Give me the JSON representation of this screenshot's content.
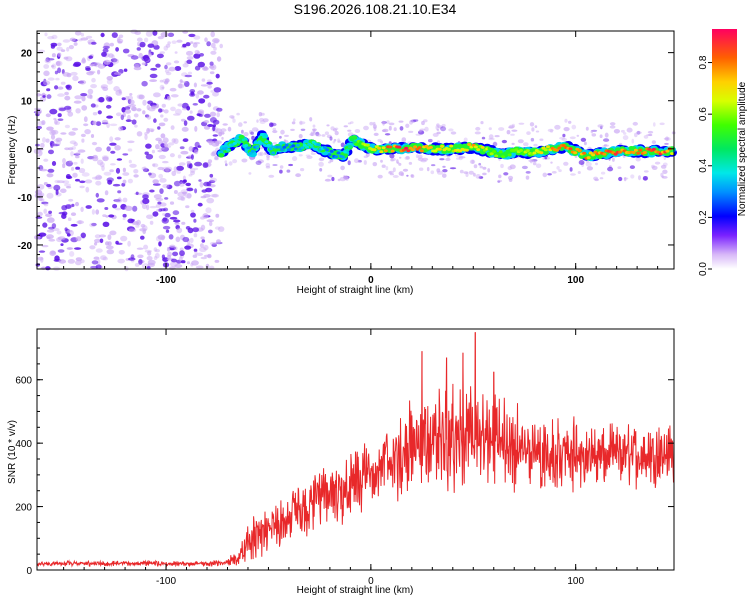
{
  "title": "S196.2026.108.21.10.E34",
  "colors": {
    "line": "#e8282a",
    "axis": "#000000",
    "scatter_low": "#c9a6f4",
    "scatter_high": "#5a10e6"
  },
  "chart_data": [
    {
      "type": "heatmap",
      "xlabel": "Height of straight line (km)",
      "ylabel": "Frequency (Hz)",
      "xlim": [
        -163,
        148
      ],
      "ylim": [
        -25,
        24.5
      ],
      "xticks": [
        -100,
        0,
        100
      ],
      "xtick_labels": [
        "-100",
        "0",
        "100"
      ],
      "yticks": [
        -20,
        -10,
        0,
        10,
        20
      ],
      "ytick_labels": [
        "-20",
        "-10",
        "0",
        "10",
        "20"
      ],
      "colorbar": {
        "label": "Normalized spectral amplitude",
        "range": [
          0,
          0.93
        ],
        "ticks": [
          0.0,
          0.2,
          0.4,
          0.6,
          0.8
        ],
        "tick_labels": [
          "0.0",
          "0.2",
          "0.4",
          "0.6",
          "0.8"
        ],
        "colormap": "rainbow"
      },
      "noise_region_x": [
        -163,
        -73
      ],
      "signal_track": {
        "x": [
          -73,
          -68,
          -63,
          -58,
          -53,
          -48,
          -43,
          -38,
          -33,
          -28,
          -23,
          -18,
          -13,
          -9,
          -5,
          0,
          10,
          20,
          30,
          40,
          50,
          60,
          65,
          70,
          80,
          90,
          95,
          100,
          105,
          110,
          120,
          130,
          140,
          148
        ],
        "y": [
          -0.8,
          0.8,
          2.2,
          -1.0,
          2.6,
          -0.5,
          0.5,
          0.2,
          0.6,
          1.0,
          -0.2,
          -1.2,
          -1.5,
          2.0,
          1.0,
          0.0,
          0.0,
          0.2,
          0.0,
          0.0,
          0.4,
          -0.8,
          -1.3,
          -0.5,
          -0.8,
          0.2,
          0.5,
          -0.5,
          -1.5,
          -1.2,
          -0.6,
          -0.4,
          -0.6,
          -0.5
        ],
        "amplitude": [
          0.35,
          0.4,
          0.45,
          0.3,
          0.4,
          0.35,
          0.3,
          0.3,
          0.35,
          0.4,
          0.35,
          0.3,
          0.35,
          0.5,
          0.6,
          0.7,
          0.85,
          0.9,
          0.75,
          0.7,
          0.75,
          0.6,
          0.55,
          0.6,
          0.65,
          0.8,
          0.9,
          0.75,
          0.85,
          0.8,
          0.85,
          0.8,
          0.9,
          0.75
        ]
      }
    },
    {
      "type": "line",
      "xlabel": "Height of straight line (km)",
      "ylabel": "SNR (10 * v/v)",
      "xlim": [
        -163,
        148
      ],
      "ylim": [
        0,
        760
      ],
      "xticks": [
        -100,
        0,
        100
      ],
      "xtick_labels": [
        "-100",
        "0",
        "100"
      ],
      "yticks": [
        0,
        200,
        400,
        600
      ],
      "ytick_labels": [
        "0",
        "200",
        "400",
        "600"
      ],
      "x": [
        -163,
        -140,
        -120,
        -100,
        -80,
        -70,
        -65,
        -60,
        -50,
        -40,
        -30,
        -20,
        -10,
        0,
        10,
        17,
        25,
        35,
        45,
        55,
        65,
        75,
        85,
        100,
        115,
        130,
        140,
        148
      ],
      "y": [
        20,
        20,
        20,
        20,
        20,
        22,
        40,
        90,
        130,
        165,
        200,
        235,
        265,
        300,
        335,
        390,
        405,
        410,
        415,
        410,
        400,
        385,
        370,
        360,
        355,
        365,
        370,
        365
      ],
      "noise_amplitude": [
        5,
        6,
        6,
        6,
        6,
        8,
        25,
        45,
        55,
        60,
        65,
        70,
        80,
        85,
        90,
        100,
        110,
        115,
        120,
        115,
        110,
        100,
        90,
        80,
        75,
        70,
        70,
        70
      ],
      "peaks": [
        {
          "x": 25,
          "y": 690
        },
        {
          "x": 37,
          "y": 670
        },
        {
          "x": 45,
          "y": 685
        },
        {
          "x": 51,
          "y": 750
        },
        {
          "x": 60,
          "y": 625
        }
      ]
    }
  ]
}
